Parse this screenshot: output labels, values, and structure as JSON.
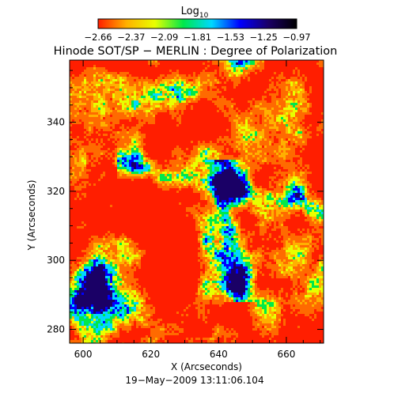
{
  "chart_data": {
    "type": "heatmap",
    "title": "Hinode SOT/SP − MERLIN : Degree of Polarization",
    "colorbar": {
      "label": "Log",
      "label_subscript": "10",
      "ticks": [
        "−2.66",
        "−2.37",
        "−2.09",
        "−1.81",
        "−1.53",
        "−1.25",
        "−0.97"
      ],
      "range": [
        -2.66,
        -0.97
      ]
    },
    "xlabel": "X (Arcseconds)",
    "ylabel": "Y (Arcseconds)",
    "xlim": [
      596,
      671
    ],
    "ylim": [
      276,
      358
    ],
    "xticks": [
      600,
      620,
      640,
      660
    ],
    "yticks": [
      280,
      300,
      320,
      340
    ],
    "date_label": "19−May−2009 13:11:06.104",
    "colorscale": [
      "#ff1e00",
      "#ffb000",
      "#e8ff00",
      "#00e84a",
      "#00d8ff",
      "#0000ff",
      "#1a0066",
      "#000000"
    ]
  }
}
